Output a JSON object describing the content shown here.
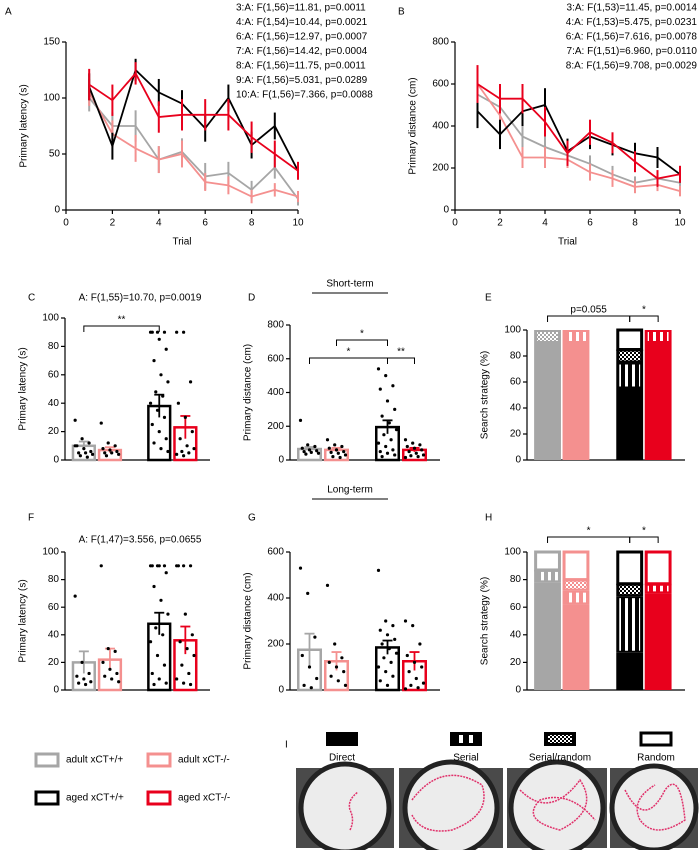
{
  "headings": [
    "Short-term",
    "Long-term"
  ],
  "strategy_legend": {
    "panel": "I",
    "labels": [
      "Direct",
      "Serial",
      "Serial/random",
      "Random"
    ]
  },
  "chart_data": [
    {
      "panel": "A",
      "type": "line",
      "x": [
        1,
        2,
        3,
        4,
        5,
        6,
        7,
        8,
        9,
        10
      ],
      "xlim": [
        0,
        10
      ],
      "xticks": [
        0,
        2,
        4,
        6,
        8,
        10
      ],
      "ylim": [
        0,
        150
      ],
      "yticks": [
        0,
        50,
        100,
        150
      ],
      "x_label": "Trial",
      "y_label": "Primary latency (s)",
      "annotations": [
        "3:A: F(1,56)=11.81, p=0.0011",
        "4:A: F(1,54)=10.44, p=0.0021",
        "6:A: F(1,56)=12.97, p=0.0007",
        "7:A: F(1,56)=14.42, p=0.0004",
        "8:A: F(1,56)=11.75, p=0.0011",
        "9:A: F(1,56)=5.031, p=0.0289",
        "10:A: F(1,56)=7.366, p=0.0088"
      ],
      "series": [
        {
          "name": "adult xCT+/+",
          "color": "#a6a6a6",
          "values": [
            100,
            75,
            75,
            45,
            52,
            30,
            33,
            18,
            38,
            10
          ],
          "errors": [
            12,
            12,
            14,
            12,
            12,
            12,
            10,
            8,
            10,
            6
          ]
        },
        {
          "name": "adult xCT-/-",
          "color": "#f4908f",
          "values": [
            105,
            68,
            55,
            45,
            50,
            25,
            22,
            12,
            18,
            12
          ],
          "errors": [
            12,
            12,
            12,
            12,
            12,
            8,
            8,
            6,
            6,
            5
          ]
        },
        {
          "name": "aged xCT+/+",
          "color": "#000000",
          "values": [
            110,
            57,
            125,
            105,
            95,
            73,
            100,
            58,
            75,
            35
          ],
          "errors": [
            12,
            12,
            10,
            12,
            12,
            12,
            12,
            12,
            12,
            6
          ]
        },
        {
          "name": "aged xCT-/-",
          "color": "#e8001c",
          "values": [
            112,
            98,
            122,
            83,
            85,
            85,
            85,
            65,
            50,
            35
          ],
          "errors": [
            14,
            14,
            10,
            14,
            14,
            14,
            14,
            14,
            12,
            8
          ]
        }
      ]
    },
    {
      "panel": "B",
      "type": "line",
      "x": [
        1,
        2,
        3,
        4,
        5,
        6,
        7,
        8,
        9,
        10
      ],
      "xlim": [
        0,
        10
      ],
      "xticks": [
        0,
        2,
        4,
        6,
        8,
        10
      ],
      "ylim": [
        0,
        800
      ],
      "yticks": [
        0,
        200,
        400,
        600,
        800
      ],
      "x_label": "Trial",
      "y_label": "Primary distance (cm)",
      "annotations": [
        "3:A: F(1,53)=11.45, p=0.0014",
        "4:A: F(1,53)=5.475, p=0.0231",
        "6:A: F(1,56)=7.616, p=0.0078",
        "7:A: F(1,51)=6.960, p=0.0110",
        "8:A: F(1,56)=9.708, p=0.0029"
      ],
      "series": [
        {
          "name": "adult xCT+/+",
          "color": "#a6a6a6",
          "values": [
            550,
            490,
            350,
            300,
            260,
            220,
            170,
            130,
            150,
            130
          ],
          "errors": [
            70,
            60,
            60,
            50,
            40,
            40,
            40,
            30,
            30,
            30
          ]
        },
        {
          "name": "adult xCT-/-",
          "color": "#f4908f",
          "values": [
            600,
            450,
            250,
            250,
            240,
            180,
            150,
            110,
            120,
            90
          ],
          "errors": [
            70,
            60,
            50,
            50,
            40,
            40,
            40,
            30,
            30,
            25
          ]
        },
        {
          "name": "aged xCT+/+",
          "color": "#000000",
          "values": [
            470,
            360,
            470,
            500,
            280,
            350,
            310,
            270,
            250,
            170
          ],
          "errors": [
            80,
            70,
            70,
            80,
            60,
            60,
            50,
            50,
            50,
            40
          ]
        },
        {
          "name": "aged xCT-/-",
          "color": "#e8001c",
          "values": [
            600,
            530,
            530,
            420,
            270,
            370,
            320,
            230,
            150,
            170
          ],
          "errors": [
            90,
            70,
            70,
            70,
            60,
            60,
            50,
            50,
            40,
            40
          ]
        }
      ]
    },
    {
      "panel": "C",
      "type": "bar",
      "categories": [
        null,
        null,
        null,
        null
      ],
      "colors": [
        "#a6a6a6",
        "#f4908f",
        "#000000",
        "#e8001c"
      ],
      "values": [
        10,
        7,
        38,
        23
      ],
      "errors": [
        3,
        2,
        8,
        8
      ],
      "ylim": [
        0,
        100
      ],
      "yticks": [
        0,
        20,
        40,
        60,
        80,
        100
      ],
      "y_label": "Primary latency (s)",
      "annotations": [
        "A: F(1,55)=10.70, p=0.0019"
      ],
      "points": [
        [
          28,
          15,
          12,
          10,
          8,
          6,
          5,
          5,
          4,
          3,
          2,
          10
        ],
        [
          26,
          12,
          10,
          8,
          7,
          6,
          5,
          5,
          4,
          3
        ],
        [
          90,
          90,
          90,
          90,
          85,
          78,
          70,
          60,
          55,
          48,
          45,
          40,
          35,
          30,
          25,
          20,
          15,
          12,
          8,
          6
        ],
        [
          90,
          90,
          55,
          40,
          30,
          20,
          15,
          10,
          8,
          6,
          5,
          4,
          3
        ]
      ],
      "significance": [
        {
          "groups": [
            0,
            2
          ],
          "label": "**"
        }
      ]
    },
    {
      "panel": "D",
      "type": "bar",
      "categories": [
        null,
        null,
        null,
        null
      ],
      "colors": [
        "#a6a6a6",
        "#f4908f",
        "#000000",
        "#e8001c"
      ],
      "values": [
        65,
        60,
        195,
        60
      ],
      "errors": [
        12,
        12,
        40,
        12
      ],
      "ylim": [
        0,
        800
      ],
      "yticks": [
        0,
        200,
        400,
        600,
        800
      ],
      "y_label": "Primary distance (cm)",
      "points": [
        [
          235,
          90,
          80,
          70,
          60,
          55,
          50,
          45,
          40,
          35
        ],
        [
          120,
          90,
          80,
          70,
          60,
          50,
          45,
          40,
          30,
          20,
          15
        ],
        [
          540,
          500,
          440,
          420,
          350,
          300,
          260,
          220,
          180,
          150,
          120,
          100,
          80,
          60,
          50,
          40,
          30,
          20
        ],
        [
          120,
          100,
          90,
          80,
          70,
          60,
          50,
          40,
          30,
          25,
          20,
          15
        ]
      ],
      "significance": [
        {
          "groups": [
            0,
            2
          ],
          "label": "*"
        },
        {
          "groups": [
            1,
            2
          ],
          "label": "*"
        },
        {
          "groups": [
            2,
            3
          ],
          "label": "**"
        }
      ]
    },
    {
      "panel": "E",
      "type": "stacked_bar",
      "categories": [
        null,
        null,
        null,
        null
      ],
      "colors": [
        "#a6a6a6",
        "#f4908f",
        "#000000",
        "#e8001c"
      ],
      "series": [
        {
          "values": [
            90,
            90,
            55,
            90
          ]
        },
        {
          "values": [
            0,
            10,
            20,
            10
          ]
        },
        {
          "values": [
            10,
            0,
            10,
            0
          ]
        },
        {
          "values": [
            0,
            0,
            15,
            0
          ]
        }
      ],
      "ylim": [
        0,
        100
      ],
      "yticks": [
        0,
        20,
        40,
        60,
        80,
        100
      ],
      "y_label": "Search strategy (%)",
      "significance": [
        {
          "groups": [
            0,
            2
          ],
          "label": "p=0.055"
        },
        {
          "groups": [
            2,
            3
          ],
          "label": "*"
        }
      ]
    },
    {
      "panel": "F",
      "type": "bar",
      "categories": [
        null,
        null,
        null,
        null
      ],
      "colors": [
        "#a6a6a6",
        "#f4908f",
        "#000000",
        "#e8001c"
      ],
      "values": [
        20,
        22,
        48,
        36
      ],
      "errors": [
        8,
        8,
        8,
        10
      ],
      "ylim": [
        0,
        100
      ],
      "yticks": [
        0,
        20,
        40,
        60,
        80,
        100
      ],
      "y_label": "Primary latency (s)",
      "annotations": [
        "A: F(1,47)=3.556, p=0.0655"
      ],
      "points": [
        [
          68,
          20,
          12,
          10,
          8,
          6,
          5,
          4
        ],
        [
          90,
          30,
          28,
          20,
          15,
          12,
          10,
          8,
          6
        ],
        [
          90,
          90,
          90,
          90,
          90,
          85,
          75,
          65,
          55,
          45,
          40,
          35,
          25,
          18,
          12,
          8,
          5,
          4
        ],
        [
          90,
          90,
          90,
          90,
          55,
          40,
          35,
          30,
          25,
          18,
          12,
          8,
          5,
          4
        ]
      ]
    },
    {
      "panel": "G",
      "type": "bar",
      "categories": [
        null,
        null,
        null,
        null
      ],
      "colors": [
        "#a6a6a6",
        "#f4908f",
        "#000000",
        "#e8001c"
      ],
      "values": [
        175,
        125,
        185,
        125
      ],
      "errors": [
        70,
        40,
        30,
        40
      ],
      "ylim": [
        0,
        600
      ],
      "yticks": [
        0,
        200,
        400,
        600
      ],
      "y_label": "Primary distance (cm)",
      "points": [
        [
          530,
          420,
          230,
          150,
          100,
          50,
          20,
          10
        ],
        [
          455,
          200,
          140,
          120,
          100,
          80,
          60,
          40,
          20
        ],
        [
          520,
          300,
          280,
          260,
          240,
          220,
          200,
          180,
          160,
          140,
          120,
          100,
          80,
          60,
          40,
          20
        ],
        [
          300,
          280,
          200,
          150,
          120,
          100,
          80,
          50,
          30,
          20,
          10,
          5
        ]
      ]
    },
    {
      "panel": "H",
      "type": "stacked_bar",
      "categories": [
        null,
        null,
        null,
        null
      ],
      "colors": [
        "#a6a6a6",
        "#f4908f",
        "#000000",
        "#e8001c"
      ],
      "series": [
        {
          "values": [
            78,
            62,
            27,
            70
          ]
        },
        {
          "values": [
            9,
            10,
            41,
            7
          ]
        },
        {
          "values": [
            0,
            8,
            9,
            0
          ]
        },
        {
          "values": [
            13,
            20,
            23,
            23
          ]
        }
      ],
      "ylim": [
        0,
        100
      ],
      "yticks": [
        0,
        20,
        40,
        60,
        80,
        100
      ],
      "y_label": "Search strategy (%)",
      "significance": [
        {
          "groups": [
            0,
            2
          ],
          "label": "*"
        },
        {
          "groups": [
            2,
            3
          ],
          "label": "*"
        }
      ]
    }
  ]
}
